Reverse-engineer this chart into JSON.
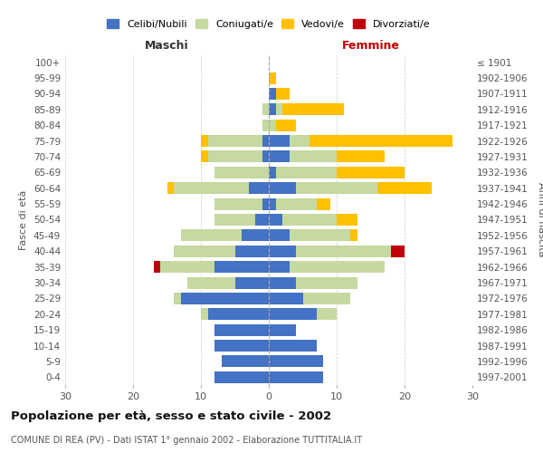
{
  "age_groups": [
    "0-4",
    "5-9",
    "10-14",
    "15-19",
    "20-24",
    "25-29",
    "30-34",
    "35-39",
    "40-44",
    "45-49",
    "50-54",
    "55-59",
    "60-64",
    "65-69",
    "70-74",
    "75-79",
    "80-84",
    "85-89",
    "90-94",
    "95-99",
    "100+"
  ],
  "birth_years": [
    "1997-2001",
    "1992-1996",
    "1987-1991",
    "1982-1986",
    "1977-1981",
    "1972-1976",
    "1967-1971",
    "1962-1966",
    "1957-1961",
    "1952-1956",
    "1947-1951",
    "1942-1946",
    "1937-1941",
    "1932-1936",
    "1927-1931",
    "1922-1926",
    "1917-1921",
    "1912-1916",
    "1907-1911",
    "1902-1906",
    "≤ 1901"
  ],
  "males": {
    "celibe": [
      8,
      7,
      8,
      8,
      9,
      13,
      5,
      8,
      5,
      4,
      2,
      1,
      3,
      0,
      1,
      1,
      0,
      0,
      0,
      0,
      0
    ],
    "coniugato": [
      0,
      0,
      0,
      0,
      1,
      1,
      7,
      8,
      9,
      9,
      6,
      7,
      11,
      8,
      8,
      8,
      1,
      1,
      0,
      0,
      0
    ],
    "vedovo": [
      0,
      0,
      0,
      0,
      0,
      0,
      0,
      0,
      0,
      0,
      0,
      0,
      1,
      0,
      1,
      1,
      0,
      0,
      0,
      0,
      0
    ],
    "divorziato": [
      0,
      0,
      0,
      0,
      0,
      0,
      0,
      1,
      0,
      0,
      0,
      0,
      0,
      0,
      0,
      0,
      0,
      0,
      0,
      0,
      0
    ]
  },
  "females": {
    "celibe": [
      8,
      8,
      7,
      4,
      7,
      5,
      4,
      3,
      4,
      3,
      2,
      1,
      4,
      1,
      3,
      3,
      0,
      1,
      1,
      0,
      0
    ],
    "coniugato": [
      0,
      0,
      0,
      0,
      3,
      7,
      9,
      14,
      14,
      9,
      8,
      6,
      12,
      9,
      7,
      3,
      1,
      1,
      0,
      0,
      0
    ],
    "vedovo": [
      0,
      0,
      0,
      0,
      0,
      0,
      0,
      0,
      0,
      1,
      3,
      2,
      8,
      10,
      7,
      21,
      3,
      9,
      2,
      1,
      0
    ],
    "divorziato": [
      0,
      0,
      0,
      0,
      0,
      0,
      0,
      0,
      2,
      0,
      0,
      0,
      0,
      0,
      0,
      0,
      0,
      0,
      0,
      0,
      0
    ]
  },
  "colors": {
    "celibe": "#4472c4",
    "coniugato": "#c5d9a0",
    "vedovo": "#ffc000",
    "divorziato": "#c0000b"
  },
  "xlim": 30,
  "title": "Popolazione per età, sesso e stato civile - 2002",
  "subtitle": "COMUNE DI REA (PV) - Dati ISTAT 1° gennaio 2002 - Elaborazione TUTTITALIA.IT",
  "legend_labels": [
    "Celibi/Nubili",
    "Coniugati/e",
    "Vedovi/e",
    "Divorziati/e"
  ],
  "xlabel_left": "Maschi",
  "xlabel_right": "Femmine",
  "ylabel_left": "Fasce di età",
  "ylabel_right": "Anni di nascita"
}
